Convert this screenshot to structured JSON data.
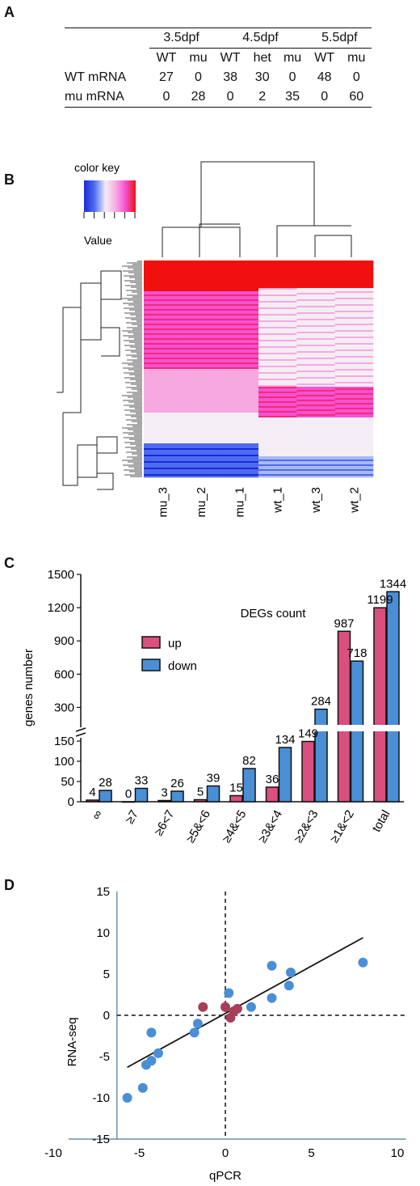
{
  "panels": {
    "a": "A",
    "b": "B",
    "c": "C",
    "d": "D"
  },
  "panelA": {
    "stages": [
      "3.5dpf",
      "4.5dpf",
      "5.5dpf"
    ],
    "subheaders": [
      "WT",
      "mu",
      "WT",
      "het",
      "mu",
      "WT",
      "mu"
    ],
    "rows": [
      {
        "label": "WT mRNA",
        "values": [
          "27",
          "0",
          "38",
          "30",
          "0",
          "48",
          "0"
        ]
      },
      {
        "label": "mu mRNA",
        "values": [
          "0",
          "28",
          "0",
          "2",
          "35",
          "0",
          "60"
        ]
      }
    ]
  },
  "panelB": {
    "color_key_title": "color key",
    "value_label": "Value",
    "key_colors": [
      "#1a2bd6",
      "#4d6bf0",
      "#a9b9f5",
      "#f4eef4",
      "#f8a8e0",
      "#f452d2",
      "#f52a7a",
      "#f01010"
    ],
    "samples": [
      "mu_3",
      "mu_2",
      "mu_1",
      "wt_1",
      "wt_3",
      "wt_2"
    ],
    "col_dendrogram": "two clusters: mu_3/mu_2/mu_1 and wt_1/wt_3/wt_2"
  },
  "chart_data": [
    {
      "type": "bar",
      "title": "DEGs count",
      "ylabel": "genes number",
      "categories": [
        "∞",
        "≥7",
        "≥6<7",
        "≥5&<6",
        "≥4&<5",
        "≥3&<4",
        "≥2&<3",
        "≥1&<2",
        "total"
      ],
      "series": [
        {
          "name": "up",
          "color": "#d94f7e",
          "values": [
            4,
            0,
            3,
            5,
            15,
            36,
            149,
            987,
            1199
          ]
        },
        {
          "name": "down",
          "color": "#4a8fd6",
          "values": [
            28,
            33,
            26,
            39,
            82,
            134,
            284,
            718,
            1344
          ]
        }
      ],
      "y_axis_break": true,
      "lower_ticks": [
        0,
        50,
        100,
        150
      ],
      "upper_ticks": [
        300,
        600,
        900,
        1200,
        1500
      ],
      "ylim": [
        0,
        1500
      ],
      "legend_placement": "top-left"
    },
    {
      "type": "scatter",
      "xlabel": "qPCR",
      "ylabel": "RNA-seq",
      "xlim": [
        -10,
        10
      ],
      "ylim": [
        -15,
        15
      ],
      "x_ticks": [
        -10,
        -5,
        0,
        5,
        10
      ],
      "y_ticks": [
        -15,
        -10,
        -5,
        0,
        5,
        10,
        15
      ],
      "series": [
        {
          "color": "#4a8fd6",
          "points": [
            [
              -5.7,
              -10
            ],
            [
              -4.8,
              -8.8
            ],
            [
              -4.6,
              -6
            ],
            [
              -4.3,
              -5.5
            ],
            [
              -4.3,
              -2.1
            ],
            [
              -3.9,
              -4.6
            ],
            [
              -1.8,
              -2.1
            ],
            [
              -1.6,
              -1
            ],
            [
              0.2,
              2.7
            ],
            [
              1.5,
              1
            ],
            [
              2.7,
              2.1
            ],
            [
              2.7,
              6
            ],
            [
              3.7,
              3.6
            ],
            [
              3.8,
              5.2
            ],
            [
              8,
              6.4
            ]
          ]
        },
        {
          "color": "#a83e5a",
          "points": [
            [
              -1.3,
              1
            ],
            [
              0,
              1
            ],
            [
              0.3,
              -0.3
            ],
            [
              0.5,
              0.5
            ],
            [
              0.7,
              0.8
            ]
          ]
        }
      ],
      "regression_line": {
        "x": [
          -5.7,
          8
        ],
        "y": [
          -6.3,
          9.4
        ]
      },
      "reference_lines": "dashed lines at x = 0 and y = 0"
    }
  ]
}
